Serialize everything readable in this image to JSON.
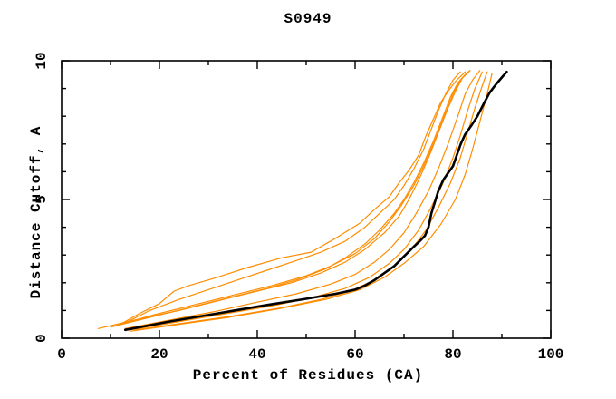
{
  "title": "S0949",
  "chart_data": {
    "type": "line",
    "title": "S0949",
    "xlabel": "Percent of Residues (CA)",
    "ylabel": "Distance Cutoff, A",
    "xlim": [
      0,
      100
    ],
    "ylim": [
      0,
      10
    ],
    "x_tick_labels": [
      "0",
      "20",
      "40",
      "60",
      "80",
      "100"
    ],
    "x_major_ticks": [
      0,
      20,
      40,
      60,
      80,
      100
    ],
    "x_minor_step": 10,
    "y_tick_labels": [
      "0",
      "5",
      "10"
    ],
    "y_major_ticks": [
      0,
      5,
      10
    ],
    "y_minor_step": 1,
    "grid": false,
    "legend": "none",
    "frame": "box-with-inward-ticks",
    "colors": {
      "model_lines": "#ff8c00",
      "reference_line": "#000000",
      "background": "#ffffff"
    },
    "series": [
      {
        "name": "reference-black",
        "color": "#000000",
        "width": 2.6,
        "points": [
          [
            13,
            0.3
          ],
          [
            22,
            0.6
          ],
          [
            32,
            0.9
          ],
          [
            42,
            1.2
          ],
          [
            50,
            1.42
          ],
          [
            56,
            1.6
          ],
          [
            60,
            1.75
          ],
          [
            62,
            1.9
          ],
          [
            64,
            2.1
          ],
          [
            66,
            2.35
          ],
          [
            68,
            2.6
          ],
          [
            70,
            2.95
          ],
          [
            72,
            3.3
          ],
          [
            73.5,
            3.55
          ],
          [
            74.3,
            3.7
          ],
          [
            75,
            4.0
          ],
          [
            75.6,
            4.5
          ],
          [
            76.3,
            4.9
          ],
          [
            77,
            5.3
          ],
          [
            78,
            5.7
          ],
          [
            79,
            5.95
          ],
          [
            80,
            6.2
          ],
          [
            80.8,
            6.6
          ],
          [
            81.6,
            7.0
          ],
          [
            82.5,
            7.35
          ],
          [
            83.7,
            7.65
          ],
          [
            85,
            8.0
          ],
          [
            86.3,
            8.45
          ],
          [
            87.5,
            8.85
          ],
          [
            88.8,
            9.15
          ],
          [
            90,
            9.4
          ],
          [
            91,
            9.6
          ]
        ]
      },
      {
        "name": "model-1",
        "color": "#ff8c00",
        "width": 1.2,
        "points": [
          [
            12,
            0.5
          ],
          [
            16,
            0.9
          ],
          [
            20,
            1.25
          ],
          [
            23,
            1.7
          ],
          [
            26,
            1.9
          ],
          [
            31,
            2.15
          ],
          [
            38,
            2.55
          ],
          [
            45,
            2.9
          ],
          [
            51,
            3.1
          ],
          [
            56,
            3.6
          ],
          [
            61,
            4.15
          ],
          [
            64,
            4.65
          ],
          [
            67,
            5.1
          ],
          [
            69,
            5.6
          ],
          [
            71,
            6.05
          ],
          [
            73,
            6.6
          ],
          [
            74.5,
            7.3
          ],
          [
            76,
            7.9
          ],
          [
            77.5,
            8.5
          ],
          [
            79,
            8.9
          ],
          [
            80.5,
            9.25
          ],
          [
            82.5,
            9.6
          ]
        ]
      },
      {
        "name": "model-2",
        "color": "#ff8c00",
        "width": 1.2,
        "points": [
          [
            13,
            0.55
          ],
          [
            18,
            1.0
          ],
          [
            24,
            1.4
          ],
          [
            30,
            1.75
          ],
          [
            36,
            2.1
          ],
          [
            42,
            2.45
          ],
          [
            48,
            2.8
          ],
          [
            53,
            3.1
          ],
          [
            58,
            3.5
          ],
          [
            62,
            4.0
          ],
          [
            65,
            4.5
          ],
          [
            68,
            5.0
          ],
          [
            70,
            5.5
          ],
          [
            72,
            6.1
          ],
          [
            74,
            6.8
          ],
          [
            75.5,
            7.5
          ],
          [
            77,
            8.2
          ],
          [
            78.5,
            8.8
          ],
          [
            80,
            9.3
          ],
          [
            81.5,
            9.6
          ]
        ]
      },
      {
        "name": "model-3",
        "color": "#ff8c00",
        "width": 1.2,
        "points": [
          [
            10,
            0.4
          ],
          [
            18,
            0.75
          ],
          [
            26,
            1.1
          ],
          [
            34,
            1.45
          ],
          [
            42,
            1.8
          ],
          [
            48,
            2.1
          ],
          [
            54,
            2.5
          ],
          [
            58,
            2.9
          ],
          [
            62,
            3.4
          ],
          [
            65,
            3.9
          ],
          [
            68,
            4.5
          ],
          [
            70,
            5.0
          ],
          [
            72,
            5.6
          ],
          [
            74,
            6.3
          ],
          [
            76,
            7.1
          ],
          [
            78,
            8.0
          ],
          [
            79.5,
            8.7
          ],
          [
            81,
            9.2
          ],
          [
            83,
            9.6
          ]
        ]
      },
      {
        "name": "model-4",
        "color": "#ff8c00",
        "width": 1.2,
        "points": [
          [
            7.5,
            0.35
          ],
          [
            16,
            0.7
          ],
          [
            24,
            1.0
          ],
          [
            32,
            1.35
          ],
          [
            40,
            1.7
          ],
          [
            47,
            2.0
          ],
          [
            53,
            2.35
          ],
          [
            58,
            2.75
          ],
          [
            62,
            3.2
          ],
          [
            66,
            3.8
          ],
          [
            69,
            4.4
          ],
          [
            71,
            5.0
          ],
          [
            73,
            5.7
          ],
          [
            75,
            6.5
          ],
          [
            77,
            7.4
          ],
          [
            79,
            8.3
          ],
          [
            80.5,
            8.9
          ],
          [
            82,
            9.4
          ],
          [
            83.5,
            9.65
          ]
        ]
      },
      {
        "name": "model-5",
        "color": "#ff8c00",
        "width": 1.2,
        "points": [
          [
            13,
            0.35
          ],
          [
            22,
            0.65
          ],
          [
            31,
            0.95
          ],
          [
            40,
            1.3
          ],
          [
            48,
            1.6
          ],
          [
            55,
            1.95
          ],
          [
            60,
            2.3
          ],
          [
            64,
            2.75
          ],
          [
            67,
            3.2
          ],
          [
            70,
            3.8
          ],
          [
            72.5,
            4.5
          ],
          [
            75,
            5.3
          ],
          [
            77,
            6.1
          ],
          [
            79,
            7.0
          ],
          [
            81,
            8.0
          ],
          [
            82.5,
            8.8
          ],
          [
            84,
            9.3
          ],
          [
            85.5,
            9.65
          ]
        ]
      },
      {
        "name": "model-6",
        "color": "#ff8c00",
        "width": 1.2,
        "points": [
          [
            14,
            0.3
          ],
          [
            24,
            0.6
          ],
          [
            34,
            0.9
          ],
          [
            44,
            1.2
          ],
          [
            52,
            1.5
          ],
          [
            58,
            1.8
          ],
          [
            63,
            2.2
          ],
          [
            67,
            2.7
          ],
          [
            70,
            3.2
          ],
          [
            73,
            3.9
          ],
          [
            75.5,
            4.7
          ],
          [
            78,
            5.6
          ],
          [
            80,
            6.5
          ],
          [
            81.5,
            7.3
          ],
          [
            83,
            8.2
          ],
          [
            84.5,
            9.0
          ],
          [
            86,
            9.6
          ]
        ]
      },
      {
        "name": "model-7",
        "color": "#ff8c00",
        "width": 1.2,
        "points": [
          [
            15,
            0.3
          ],
          [
            25,
            0.55
          ],
          [
            35,
            0.8
          ],
          [
            45,
            1.1
          ],
          [
            53,
            1.4
          ],
          [
            59,
            1.7
          ],
          [
            64,
            2.1
          ],
          [
            68,
            2.6
          ],
          [
            71.5,
            3.2
          ],
          [
            74.5,
            3.9
          ],
          [
            77,
            4.7
          ],
          [
            79.5,
            5.6
          ],
          [
            81.5,
            6.5
          ],
          [
            83,
            7.4
          ],
          [
            84.5,
            8.3
          ],
          [
            86,
            9.1
          ],
          [
            87,
            9.6
          ]
        ]
      },
      {
        "name": "model-8",
        "color": "#ff8c00",
        "width": 1.2,
        "points": [
          [
            14,
            0.25
          ],
          [
            24,
            0.5
          ],
          [
            34,
            0.75
          ],
          [
            44,
            1.05
          ],
          [
            54,
            1.4
          ],
          [
            61,
            1.75
          ],
          [
            66,
            2.2
          ],
          [
            70,
            2.7
          ],
          [
            74,
            3.3
          ],
          [
            77.5,
            4.1
          ],
          [
            80.5,
            5.0
          ],
          [
            82.5,
            5.9
          ],
          [
            84,
            6.8
          ],
          [
            85.5,
            7.8
          ],
          [
            87,
            8.8
          ],
          [
            88,
            9.55
          ]
        ]
      },
      {
        "name": "model-9",
        "color": "#ff8c00",
        "width": 1.2,
        "points": [
          [
            11,
            0.45
          ],
          [
            19,
            0.85
          ],
          [
            27,
            1.2
          ],
          [
            35,
            1.55
          ],
          [
            43,
            1.9
          ],
          [
            50,
            2.25
          ],
          [
            55,
            2.6
          ],
          [
            60,
            3.05
          ],
          [
            64,
            3.6
          ],
          [
            67,
            4.2
          ],
          [
            69.5,
            4.8
          ],
          [
            72,
            5.5
          ],
          [
            74,
            6.2
          ],
          [
            76,
            7.0
          ],
          [
            78,
            7.9
          ],
          [
            80,
            8.8
          ],
          [
            81.5,
            9.3
          ],
          [
            83.5,
            9.65
          ]
        ]
      }
    ]
  }
}
